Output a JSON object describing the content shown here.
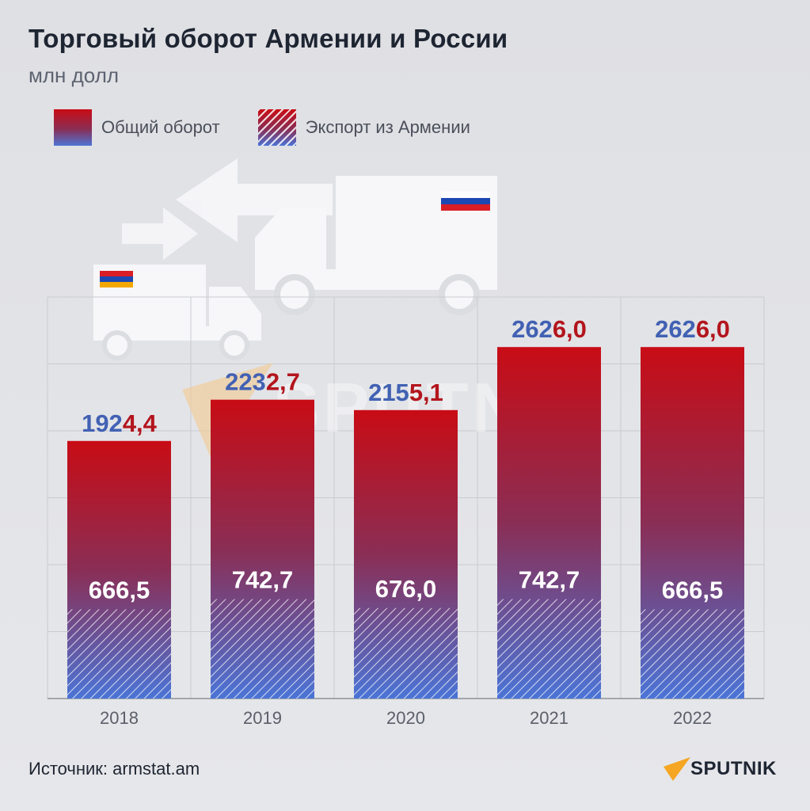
{
  "header": {
    "title": "Торговый оборот Армении и России",
    "subtitle": "млн долл"
  },
  "legend": {
    "total_label": "Общий оборот",
    "export_label": "Экспорт из Армении"
  },
  "watermark": {
    "text": "SPUTNIK"
  },
  "footer": {
    "source": "Источник: armstat.am",
    "brand": "SPUTNIK"
  },
  "colors": {
    "total_top": "#c80c15",
    "total_mid": "#8a2e55",
    "total_bottom": "#4b74d6",
    "export_stripe": "#ffffff",
    "value_blue": "#3f5fb0",
    "value_red": "#b2141c",
    "brand_orange": "#f5a623",
    "grid": "#c7c9ce"
  },
  "icons": [
    "truck-armenia-icon",
    "truck-russia-icon",
    "armenia-flag-icon",
    "russia-flag-icon",
    "exchange-arrows-icon",
    "sputnik-logo-icon"
  ],
  "chart_data": {
    "type": "bar",
    "categories": [
      "2018",
      "2019",
      "2020",
      "2021",
      "2022"
    ],
    "series": [
      {
        "name": "Общий оборот",
        "values": [
          1924.4,
          2232.7,
          2155.1,
          2626.0,
          2626.0
        ],
        "labels": [
          "1924,4",
          "2232,7",
          "2155,1",
          "2626,0",
          "2626,0"
        ]
      },
      {
        "name": "Экспорт из Армении",
        "values": [
          666.5,
          742.7,
          676.0,
          742.7,
          666.5
        ],
        "labels": [
          "666,5",
          "742,7",
          "676,0",
          "742,7",
          "666,5"
        ]
      }
    ],
    "title": "Торговый оборот Армении и России",
    "ylabel": "",
    "xlabel": "",
    "grid": true,
    "legend": "top-left"
  }
}
